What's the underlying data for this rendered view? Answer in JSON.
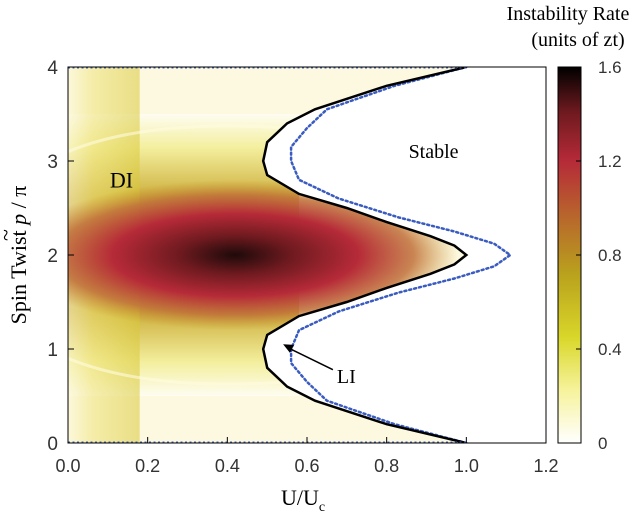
{
  "chart_data": {
    "type": "heatmap",
    "xlabel_main": "U/U",
    "xlabel_sub": "c",
    "ylabel_prefix": "Spin Twist ",
    "ylabel_symbol": "p",
    "ylabel_tilde": "~",
    "ylabel_suffix": " / π",
    "x_ticks": [
      "0.0",
      "0.2",
      "0.4",
      "0.6",
      "0.8",
      "1.0",
      "1.2"
    ],
    "y_ticks": [
      "0",
      "1",
      "2",
      "3",
      "4"
    ],
    "xlim": [
      0,
      1.2
    ],
    "ylim": [
      0,
      4
    ],
    "colorbar": {
      "title_line1": "Instability Rate",
      "title_line2": "(units of zt)",
      "ticks": [
        "0",
        "0.4",
        "0.8",
        "1.2",
        "1.6"
      ],
      "range": [
        0,
        1.6
      ],
      "colormap": [
        "#ffffff",
        "#f6f39c",
        "#d9d72a",
        "#b9a11d",
        "#b8672c",
        "#b62a38",
        "#6e1a1f",
        "#000000"
      ]
    },
    "annotations": {
      "stable": "Stable",
      "di": "DI",
      "li": "LI",
      "li_arrow_target": {
        "x": 0.54,
        "y": 1.05
      }
    },
    "boundary_solid": {
      "name": "solid boundary",
      "color": "#000000",
      "points": [
        [
          1.0,
          0.0
        ],
        [
          0.8,
          0.2
        ],
        [
          0.62,
          0.45
        ],
        [
          0.55,
          0.6
        ],
        [
          0.5,
          0.8
        ],
        [
          0.49,
          1.0
        ],
        [
          0.5,
          1.15
        ],
        [
          0.58,
          1.35
        ],
        [
          0.7,
          1.5
        ],
        [
          0.8,
          1.65
        ],
        [
          0.91,
          1.8
        ],
        [
          0.97,
          1.9
        ],
        [
          1.0,
          2.0
        ],
        [
          0.97,
          2.1
        ],
        [
          0.91,
          2.2
        ],
        [
          0.8,
          2.35
        ],
        [
          0.7,
          2.5
        ],
        [
          0.58,
          2.65
        ],
        [
          0.5,
          2.85
        ],
        [
          0.49,
          3.0
        ],
        [
          0.5,
          3.2
        ],
        [
          0.55,
          3.4
        ],
        [
          0.62,
          3.55
        ],
        [
          0.8,
          3.8
        ],
        [
          1.0,
          4.0
        ]
      ]
    },
    "boundary_dotted": {
      "name": "dotted boundary",
      "color": "#3a5cc0",
      "points": [
        [
          1.0,
          0.0
        ],
        [
          0.82,
          0.2
        ],
        [
          0.65,
          0.45
        ],
        [
          0.6,
          0.65
        ],
        [
          0.56,
          0.85
        ],
        [
          0.56,
          1.0
        ],
        [
          0.58,
          1.2
        ],
        [
          0.68,
          1.4
        ],
        [
          0.83,
          1.6
        ],
        [
          0.97,
          1.75
        ],
        [
          1.07,
          1.88
        ],
        [
          1.11,
          2.0
        ],
        [
          1.07,
          2.12
        ],
        [
          0.97,
          2.25
        ],
        [
          0.83,
          2.4
        ],
        [
          0.68,
          2.6
        ],
        [
          0.58,
          2.8
        ],
        [
          0.56,
          3.0
        ],
        [
          0.56,
          3.15
        ],
        [
          0.6,
          3.35
        ],
        [
          0.65,
          3.55
        ],
        [
          0.82,
          3.8
        ],
        [
          1.0,
          4.0
        ]
      ]
    },
    "heat_peak": {
      "x": 0.4,
      "y": 2.0,
      "value": 1.6
    }
  }
}
